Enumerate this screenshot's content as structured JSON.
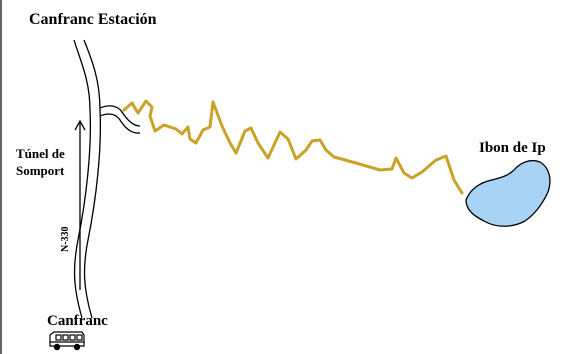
{
  "places": {
    "canfranc_estacion": "Canfranc Estación",
    "ibon_de_ip": "Ibon de Ip",
    "canfranc": "Canfranc"
  },
  "tunnel": {
    "line1": "Túnel de",
    "line2": "Somport"
  },
  "road": {
    "name": "N-330"
  },
  "icons": {
    "start_marker": "bus-icon"
  },
  "colors": {
    "trail": "#c9a227",
    "lake_fill": "#a9d3f5",
    "road": "#000000",
    "background": "#ffffff"
  }
}
